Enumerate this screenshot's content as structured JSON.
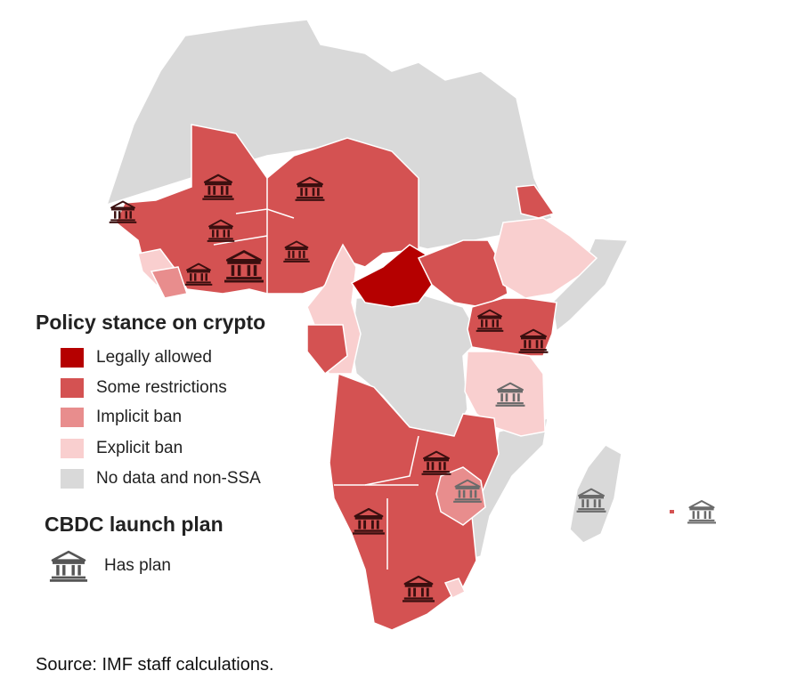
{
  "legend": {
    "policy_title": "Policy stance on crypto",
    "categories": [
      {
        "label": "Legally allowed",
        "color": "#b50000"
      },
      {
        "label": "Some restrictions",
        "color": "#d45252"
      },
      {
        "label": "Implicit ban",
        "color": "#e88d8d"
      },
      {
        "label": "Explicit ban",
        "color": "#f9cfcf"
      },
      {
        "label": "No data and non-SSA",
        "color": "#d9d9d9"
      }
    ],
    "cbdc_title": "CBDC launch plan",
    "cbdc_item": {
      "label": "Has plan",
      "icon": "bank-icon"
    }
  },
  "source": "Source: IMF staff calculations."
}
